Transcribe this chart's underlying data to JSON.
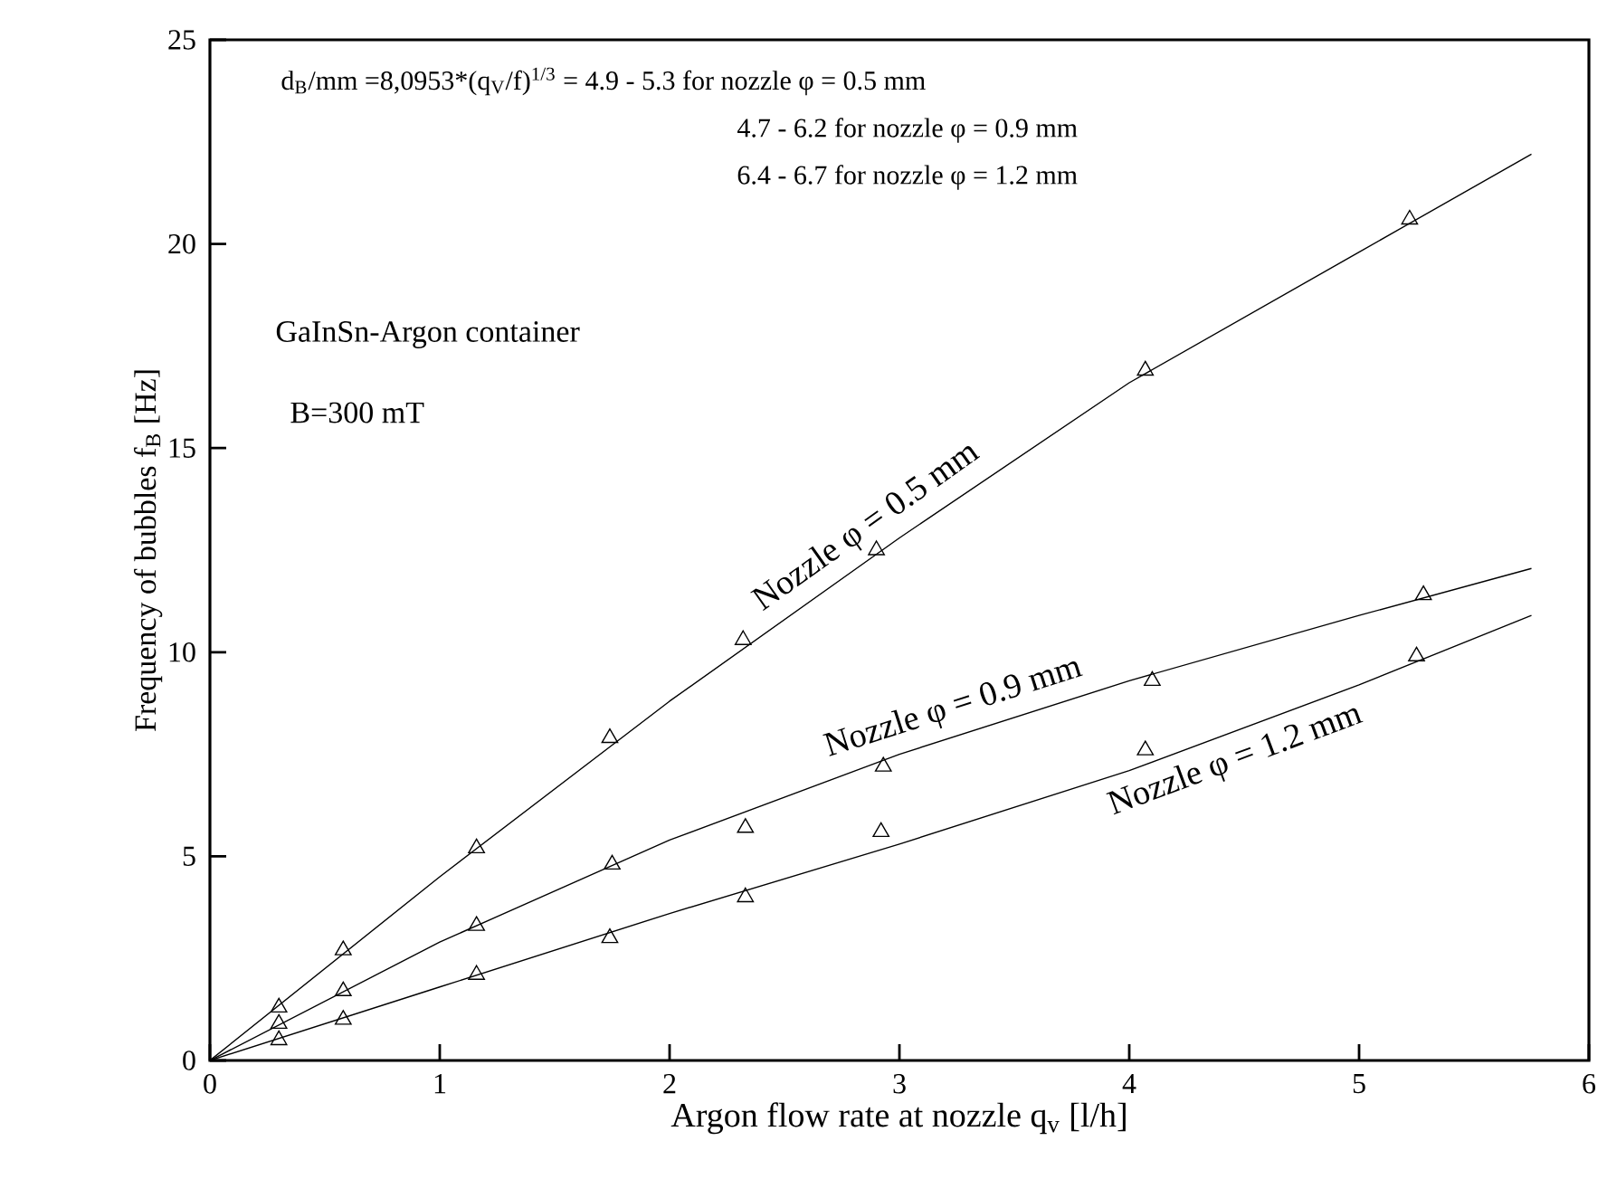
{
  "chart_data": {
    "type": "scatter",
    "xlabel": "Argon flow rate at nozzle q$_{v}$  [l/h]",
    "ylabel": "Frequency of bubbles f$_{B}$  [Hz]",
    "annotations": [
      "d$_{B}$/mm =8,0953*(q$_{V}$/f)$^{1/3}$ =  4.9 - 5.3 for  nozzle φ = 0.5 mm",
      "4.7 -  6.2 for  nozzle φ = 0.9 mm",
      "6.4 -  6.7 for nozzle  φ = 1.2 mm",
      "GaInSn-Argon container",
      "B=300 mT"
    ],
    "xlim": [
      0,
      6
    ],
    "ylim": [
      0,
      25
    ],
    "xticks": [
      0,
      1,
      2,
      3,
      4,
      5,
      6
    ],
    "yticks": [
      0,
      5,
      10,
      15,
      20,
      25
    ],
    "series": [
      {
        "color": "#000000",
        "marker": "triangle",
        "x": [
          0.3,
          0.58,
          1.16,
          1.74,
          2.32,
          2.9,
          4.07,
          5.22
        ],
        "values": [
          1.3,
          2.7,
          5.2,
          7.9,
          10.3,
          12.5,
          16.9,
          20.6
        ]
      },
      {
        "color": "#000000",
        "marker": "triangle",
        "x": [
          0.3,
          0.58,
          1.16,
          1.75,
          2.33,
          2.93,
          4.1,
          5.28
        ],
        "values": [
          0.9,
          1.7,
          3.3,
          4.8,
          5.7,
          7.2,
          9.3,
          11.4
        ]
      },
      {
        "color": "#000000",
        "marker": "triangle",
        "x": [
          0.3,
          0.58,
          1.16,
          1.74,
          2.33,
          2.92,
          4.07,
          5.25
        ],
        "values": [
          0.5,
          1.0,
          2.1,
          3.0,
          4.0,
          5.6,
          7.6,
          9.9
        ]
      },
      {
        "type": "line",
        "name": "Nozzle φ = 0.5 mm",
        "color": "#000000",
        "marker": "none",
        "line_style": "solid",
        "x": [
          0,
          1,
          2,
          3,
          4,
          5,
          5.75
        ],
        "values": [
          0,
          4.5,
          8.8,
          12.8,
          16.6,
          19.8,
          22.2
        ]
      },
      {
        "type": "line",
        "name": "Nozzle φ =  0.9 mm",
        "color": "#000000",
        "marker": "none",
        "line_style": "solid",
        "x": [
          0,
          1,
          2,
          3,
          4,
          5,
          5.75
        ],
        "values": [
          0,
          2.9,
          5.4,
          7.5,
          9.3,
          10.9,
          12.05
        ]
      },
      {
        "type": "line",
        "name": "Nozzle φ = 1.2 mm",
        "color": "#000000",
        "marker": "none",
        "line_style": "solid",
        "x": [
          0,
          1,
          2,
          3,
          4,
          5,
          5.75
        ],
        "values": [
          0,
          1.8,
          3.6,
          5.3,
          7.1,
          9.2,
          10.9
        ]
      }
    ]
  }
}
